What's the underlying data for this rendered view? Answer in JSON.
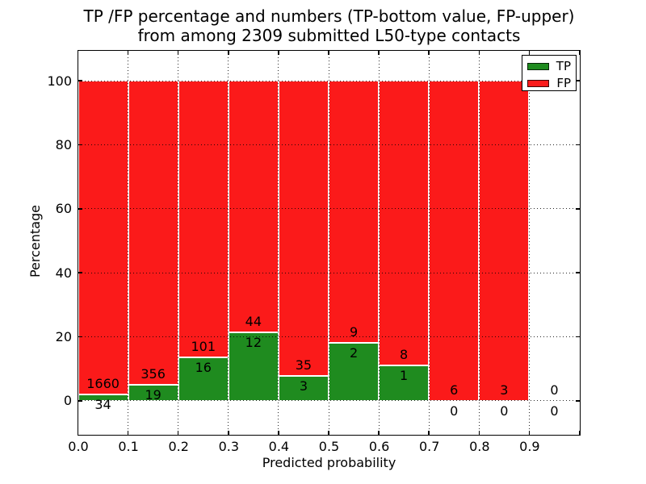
{
  "title": {
    "line1": "TP /FP percentage and numbers (TP-bottom value, FP-upper)",
    "line2": "from among 2309 submitted L50-type contacts"
  },
  "colors": {
    "tp": "#1f8b1f",
    "fp": "#fb1a1a",
    "grid": "#000000",
    "text": "#000000",
    "background": "#ffffff"
  },
  "legend": {
    "entries": [
      {
        "label": "TP",
        "color_key": "tp"
      },
      {
        "label": "FP",
        "color_key": "fp"
      }
    ]
  },
  "chart_data": {
    "type": "bar",
    "stacked": true,
    "unit": "percent",
    "title": "TP /FP percentage and numbers (TP-bottom value, FP-upper)\nfrom among 2309 submitted L50-type contacts",
    "xlabel": "Predicted probability",
    "ylabel": "Percentage",
    "total_submitted_contacts": 2309,
    "contact_type": "L50",
    "bin_width": 0.1,
    "bins": [
      {
        "x_start": 0.0,
        "tp_count": 34,
        "fp_count": 1660,
        "tp_pct": 2.01,
        "fp_pct": 97.99
      },
      {
        "x_start": 0.1,
        "tp_count": 19,
        "fp_count": 356,
        "tp_pct": 5.07,
        "fp_pct": 94.93
      },
      {
        "x_start": 0.2,
        "tp_count": 16,
        "fp_count": 101,
        "tp_pct": 13.68,
        "fp_pct": 86.32
      },
      {
        "x_start": 0.3,
        "tp_count": 12,
        "fp_count": 44,
        "tp_pct": 21.43,
        "fp_pct": 78.57
      },
      {
        "x_start": 0.4,
        "tp_count": 3,
        "fp_count": 35,
        "tp_pct": 7.89,
        "fp_pct": 92.11
      },
      {
        "x_start": 0.5,
        "tp_count": 2,
        "fp_count": 9,
        "tp_pct": 18.18,
        "fp_pct": 81.82
      },
      {
        "x_start": 0.6,
        "tp_count": 1,
        "fp_count": 8,
        "tp_pct": 11.11,
        "fp_pct": 88.89
      },
      {
        "x_start": 0.7,
        "tp_count": 0,
        "fp_count": 6,
        "tp_pct": 0,
        "fp_pct": 100
      },
      {
        "x_start": 0.8,
        "tp_count": 0,
        "fp_count": 3,
        "tp_pct": 0,
        "fp_pct": 100
      },
      {
        "x_start": 0.9,
        "tp_count": 0,
        "fp_count": 0,
        "tp_pct": null,
        "fp_pct": null
      }
    ],
    "xticks": [
      "0.0",
      "0.1",
      "0.2",
      "0.3",
      "0.4",
      "0.5",
      "0.6",
      "0.7",
      "0.8",
      "0.9"
    ],
    "yticks": [
      0,
      20,
      40,
      60,
      80,
      100
    ],
    "xlim": [
      0.0,
      1.0
    ],
    "ylim": [
      -10.5,
      109.5
    ],
    "grid": "dotted",
    "legend_position": "upper right"
  }
}
